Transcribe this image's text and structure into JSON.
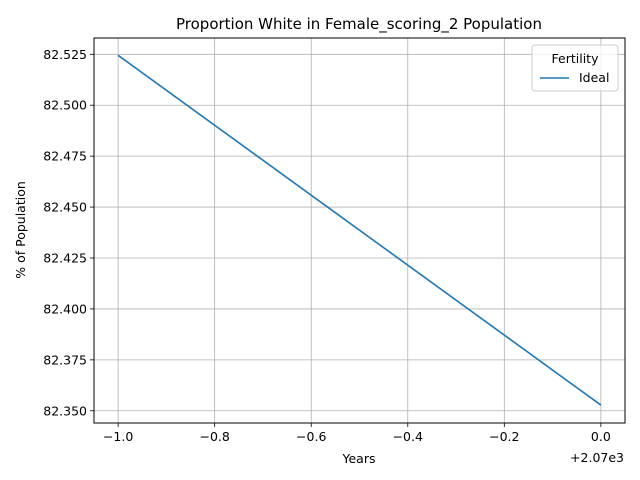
{
  "chart_data": {
    "type": "line",
    "title": "Proportion White in Female_scoring_2 Population",
    "xlabel": "Years",
    "ylabel": "% of Population",
    "x_offset_label": "+2.07e3",
    "xlim": [
      -1.05,
      0.05
    ],
    "ylim": [
      82.344,
      82.533
    ],
    "x_ticks": [
      -1.0,
      -0.8,
      -0.6,
      -0.4,
      -0.2,
      0.0
    ],
    "x_tick_labels": [
      "−1.0",
      "−0.8",
      "−0.6",
      "−0.4",
      "−0.2",
      "0.0"
    ],
    "y_ticks": [
      82.35,
      82.375,
      82.4,
      82.425,
      82.45,
      82.475,
      82.5,
      82.525
    ],
    "y_tick_labels": [
      "82.350",
      "82.375",
      "82.400",
      "82.425",
      "82.450",
      "82.475",
      "82.500",
      "82.525"
    ],
    "grid": true,
    "legend": {
      "title": "Fertility",
      "placement": "top-right"
    },
    "series": [
      {
        "name": "Ideal",
        "color": "#1f77b4",
        "x": [
          -1.0,
          0.0
        ],
        "y": [
          82.5245,
          82.3528
        ]
      }
    ]
  }
}
